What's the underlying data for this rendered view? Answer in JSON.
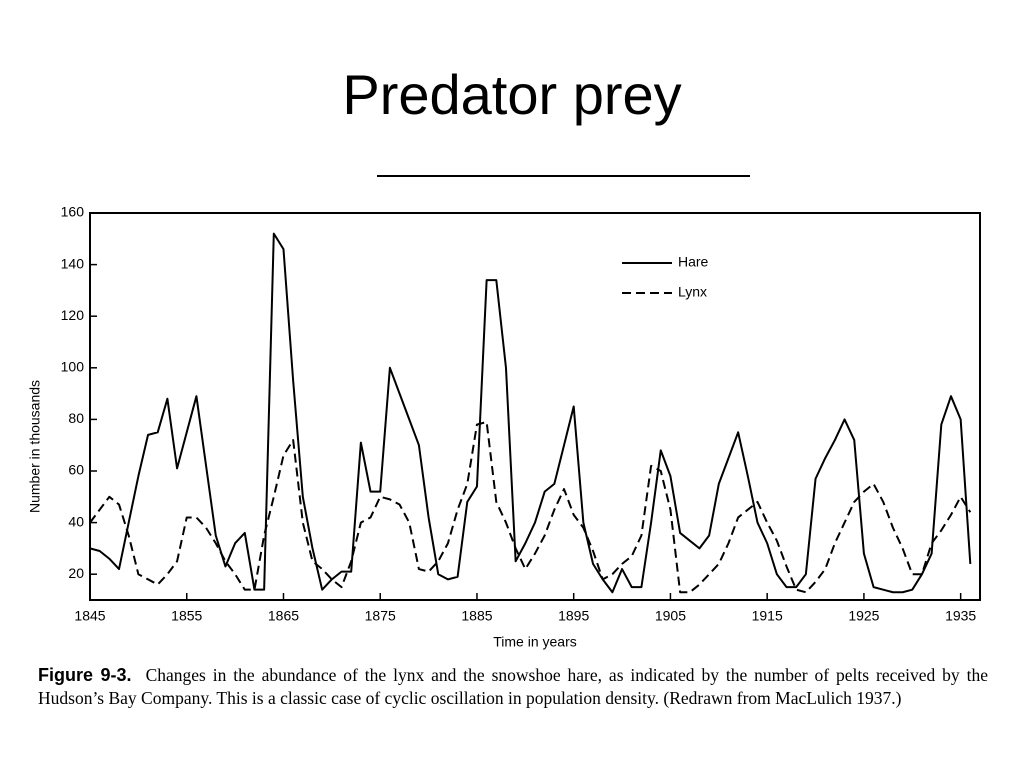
{
  "slide_title": "Predator prey",
  "chart_data": {
    "type": "line",
    "ylabel": "Number in thousands",
    "xlabel": "Time in years",
    "x": [
      1845,
      1846,
      1847,
      1848,
      1849,
      1850,
      1851,
      1852,
      1853,
      1854,
      1855,
      1856,
      1857,
      1858,
      1859,
      1860,
      1861,
      1862,
      1863,
      1864,
      1865,
      1866,
      1867,
      1868,
      1869,
      1870,
      1871,
      1872,
      1873,
      1874,
      1875,
      1876,
      1877,
      1878,
      1879,
      1880,
      1881,
      1882,
      1883,
      1884,
      1885,
      1886,
      1887,
      1888,
      1889,
      1890,
      1891,
      1892,
      1893,
      1894,
      1895,
      1896,
      1897,
      1898,
      1899,
      1900,
      1901,
      1902,
      1903,
      1904,
      1905,
      1906,
      1907,
      1908,
      1909,
      1910,
      1911,
      1912,
      1913,
      1914,
      1915,
      1916,
      1917,
      1918,
      1919,
      1920,
      1921,
      1922,
      1923,
      1924,
      1925,
      1926,
      1927,
      1928,
      1929,
      1930,
      1931,
      1932,
      1933,
      1934,
      1935,
      1936
    ],
    "series": [
      {
        "name": "Hare",
        "color": "#000000",
        "style": "solid",
        "values": [
          30,
          29,
          26,
          22,
          40,
          58,
          74,
          75,
          88,
          61,
          75,
          89,
          62,
          35,
          23,
          32,
          36,
          14,
          14,
          152,
          146,
          95,
          50,
          30,
          14,
          18,
          21,
          21,
          71,
          52,
          52,
          100,
          90,
          80,
          70,
          42,
          20,
          18,
          19,
          48,
          54,
          134,
          134,
          100,
          25,
          32,
          40,
          52,
          55,
          70,
          85,
          40,
          24,
          18,
          13,
          22,
          15,
          15,
          40,
          68,
          58,
          36,
          33,
          30,
          35,
          55,
          65,
          75,
          58,
          40,
          32,
          20,
          15,
          15,
          20,
          57,
          65,
          72,
          80,
          72,
          28,
          15,
          14,
          13,
          13,
          14,
          20,
          28,
          78,
          89,
          80,
          24
        ]
      },
      {
        "name": "Lynx",
        "color": "#000000",
        "style": "dashed",
        "values": [
          40,
          45,
          50,
          47,
          35,
          20,
          18,
          16,
          20,
          25,
          42,
          42,
          38,
          32,
          25,
          20,
          14,
          14,
          35,
          50,
          66,
          72,
          40,
          25,
          22,
          18,
          15,
          25,
          40,
          42,
          50,
          49,
          47,
          40,
          22,
          21,
          25,
          32,
          45,
          55,
          78,
          79,
          48,
          40,
          30,
          22,
          28,
          35,
          45,
          53,
          43,
          38,
          29,
          18,
          20,
          24,
          27,
          35,
          62,
          60,
          45,
          13,
          13,
          16,
          20,
          24,
          32,
          42,
          45,
          48,
          40,
          33,
          23,
          14,
          13,
          17,
          22,
          32,
          40,
          48,
          52,
          55,
          48,
          38,
          30,
          20,
          20,
          32,
          37,
          43,
          50,
          44
        ]
      }
    ],
    "xlim": [
      1845,
      1937
    ],
    "xticks": [
      1845,
      1855,
      1865,
      1875,
      1885,
      1895,
      1905,
      1915,
      1925,
      1935
    ],
    "ylim": [
      10,
      160
    ],
    "yticks": [
      20,
      40,
      60,
      80,
      100,
      120,
      140,
      160
    ],
    "legend": "top-right"
  },
  "caption": {
    "label": "Figure 9-3.",
    "text": "Changes in the abundance of the lynx and the snowshoe hare, as indicated by the number of pelts received by the Hudson’s Bay Company. This is a classic case of cyclic oscillation in population density. (Redrawn from MacLulich 1937.)"
  }
}
